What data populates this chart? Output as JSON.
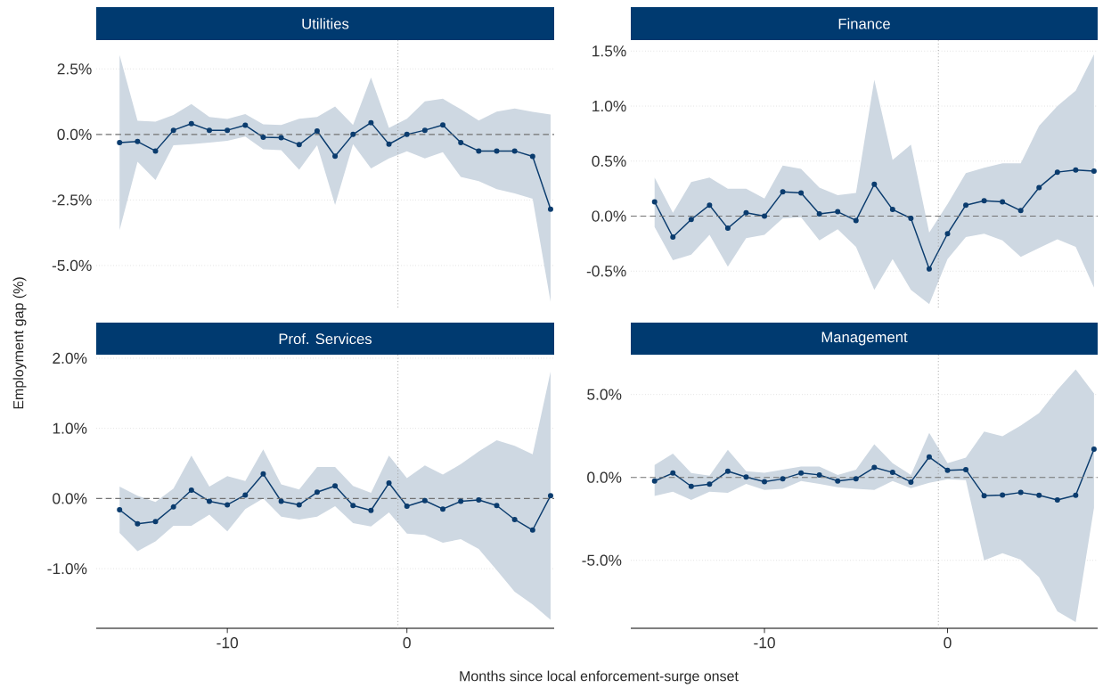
{
  "chart_data": [
    {
      "type": "line",
      "title": "Utilities",
      "ylabel": "Employment gap (%)",
      "x": [
        -16,
        -15,
        -14,
        -13,
        -12,
        -11,
        -10,
        -9,
        -8,
        -7,
        -6,
        -5,
        -4,
        -3,
        -2,
        -1,
        0,
        1,
        2,
        3,
        4,
        5,
        6,
        7,
        8
      ],
      "xlim": [
        -17.3,
        8.2
      ],
      "ylim": [
        -6.6,
        3.6
      ],
      "xticks": [
        -10,
        0
      ],
      "yticks": [
        {
          "value": -5,
          "label": "-5.0%"
        },
        {
          "value": -2.5,
          "label": "-2.5%"
        },
        {
          "value": 0,
          "label": "0.0%"
        },
        {
          "value": 2.5,
          "label": "2.5%"
        }
      ],
      "grid": "y",
      "marker": "circle",
      "line_style": "solid",
      "tick_labels": "y",
      "ref_lines": [
        {
          "axis": "x",
          "value": -0.5,
          "line_style": "dotted"
        },
        {
          "axis": "y",
          "value": 0,
          "line_style": "dashed"
        }
      ],
      "series": [
        {
          "color": "#0b3c6e",
          "values": [
            -0.31,
            -0.27,
            -0.63,
            0.16,
            0.41,
            0.16,
            0.16,
            0.35,
            -0.11,
            -0.12,
            -0.39,
            0.13,
            -0.83,
            0,
            0.45,
            -0.37,
            0,
            0.16,
            0.36,
            -0.31,
            -0.63,
            -0.63,
            -0.63,
            -0.84,
            -2.85
          ],
          "upper": [
            3.03,
            0.52,
            0.49,
            0.74,
            1.16,
            0.67,
            0.59,
            0.78,
            0.39,
            0.36,
            0.6,
            0.67,
            1.07,
            0.36,
            2.17,
            0.25,
            0.6,
            1.26,
            1.36,
            0.96,
            0.53,
            0.87,
            0.99,
            0.86,
            0.76
          ],
          "lower": [
            -3.65,
            -1.04,
            -1.74,
            -0.41,
            -0.37,
            -0.31,
            -0.24,
            -0.08,
            -0.57,
            -0.6,
            -1.35,
            -0.41,
            -2.69,
            -0.37,
            -1.3,
            -0.91,
            -0.64,
            -0.91,
            -0.68,
            -1.62,
            -1.78,
            -2.09,
            -2.25,
            -2.45,
            -6.39
          ]
        }
      ]
    },
    {
      "type": "line",
      "title": "Finance",
      "x": [
        -16,
        -15,
        -14,
        -13,
        -12,
        -11,
        -10,
        -9,
        -8,
        -7,
        -6,
        -5,
        -4,
        -3,
        -2,
        -1,
        0,
        1,
        2,
        3,
        4,
        5,
        6,
        7,
        8
      ],
      "xlim": [
        -17.3,
        8.2
      ],
      "ylim": [
        -0.83,
        1.6
      ],
      "xticks": [
        -10,
        0
      ],
      "yticks": [
        {
          "value": -0.5,
          "label": "-0.5%"
        },
        {
          "value": 0,
          "label": "0.0%"
        },
        {
          "value": 0.5,
          "label": "0.5%"
        },
        {
          "value": 1,
          "label": "1.0%"
        },
        {
          "value": 1.5,
          "label": "1.5%"
        }
      ],
      "grid": "y",
      "marker": "circle",
      "line_style": "solid",
      "tick_labels": "y",
      "ref_lines": [
        {
          "axis": "x",
          "value": -0.5,
          "line_style": "dotted"
        },
        {
          "axis": "y",
          "value": 0,
          "line_style": "dashed"
        }
      ],
      "series": [
        {
          "color": "#0b3c6e",
          "values": [
            0.13,
            -0.19,
            -0.03,
            0.1,
            -0.11,
            0.03,
            0.0,
            0.22,
            0.21,
            0.02,
            0.04,
            -0.04,
            0.29,
            0.06,
            -0.02,
            -0.48,
            -0.16,
            0.1,
            0.14,
            0.13,
            0.05,
            0.26,
            0.4,
            0.42,
            0.41
          ],
          "upper": [
            0.35,
            0.03,
            0.31,
            0.35,
            0.25,
            0.25,
            0.16,
            0.46,
            0.43,
            0.26,
            0.19,
            0.21,
            1.24,
            0.51,
            0.65,
            -0.15,
            0.11,
            0.39,
            0.44,
            0.48,
            0.48,
            0.82,
            1.0,
            1.14,
            1.47
          ],
          "lower": [
            -0.1,
            -0.4,
            -0.35,
            -0.17,
            -0.46,
            -0.2,
            -0.17,
            -0.02,
            -0.01,
            -0.22,
            -0.12,
            -0.28,
            -0.67,
            -0.39,
            -0.67,
            -0.8,
            -0.39,
            -0.19,
            -0.16,
            -0.22,
            -0.37,
            -0.29,
            -0.21,
            -0.28,
            -0.65
          ]
        }
      ]
    },
    {
      "type": "line",
      "title": "Prof. Services",
      "xlabel": "Months since local enforcement-surge onset",
      "x": [
        -16,
        -15,
        -14,
        -13,
        -12,
        -11,
        -10,
        -9,
        -8,
        -7,
        -6,
        -5,
        -4,
        -3,
        -2,
        -1,
        0,
        1,
        2,
        3,
        4,
        5,
        6,
        7,
        8
      ],
      "xlim": [
        -17.3,
        8.2
      ],
      "ylim": [
        -1.85,
        2.05
      ],
      "xticks": [
        -10,
        0
      ],
      "yticks": [
        {
          "value": -1,
          "label": "-1.0%"
        },
        {
          "value": 0,
          "label": "0.0%"
        },
        {
          "value": 1,
          "label": "1.0%"
        },
        {
          "value": 2,
          "label": "2.0%"
        }
      ],
      "grid": "y",
      "marker": "circle",
      "line_style": "solid",
      "ref_lines": [
        {
          "axis": "x",
          "value": -0.5,
          "line_style": "dotted"
        },
        {
          "axis": "y",
          "value": 0,
          "line_style": "dashed"
        }
      ],
      "series": [
        {
          "color": "#0b3c6e",
          "values": [
            -0.16,
            -0.36,
            -0.33,
            -0.12,
            0.12,
            -0.04,
            -0.09,
            0.05,
            0.35,
            -0.04,
            -0.09,
            0.09,
            0.18,
            -0.1,
            -0.17,
            0.22,
            -0.11,
            -0.03,
            -0.15,
            -0.04,
            -0.02,
            -0.1,
            -0.3,
            -0.45,
            0.04
          ],
          "upper": [
            0.17,
            0.04,
            -0.05,
            0.14,
            0.61,
            0.17,
            0.32,
            0.25,
            0.7,
            0.2,
            0.13,
            0.45,
            0.45,
            0.18,
            0.08,
            0.61,
            0.29,
            0.47,
            0.34,
            0.49,
            0.67,
            0.83,
            0.75,
            0.63,
            1.81
          ],
          "lower": [
            -0.49,
            -0.75,
            -0.61,
            -0.39,
            -0.39,
            -0.23,
            -0.47,
            -0.15,
            0.0,
            -0.26,
            -0.3,
            -0.26,
            -0.11,
            -0.35,
            -0.4,
            -0.2,
            -0.5,
            -0.52,
            -0.63,
            -0.58,
            -0.72,
            -1.02,
            -1.33,
            -1.51,
            -1.73
          ]
        }
      ]
    },
    {
      "type": "line",
      "title": "Management",
      "x": [
        -16,
        -15,
        -14,
        -13,
        -12,
        -11,
        -10,
        -9,
        -8,
        -7,
        -6,
        -5,
        -4,
        -3,
        -2,
        -1,
        0,
        1,
        2,
        3,
        4,
        5,
        6,
        7,
        8
      ],
      "xlim": [
        -17.3,
        8.2
      ],
      "ylim": [
        -9.1,
        7.4
      ],
      "xticks": [
        -10,
        0
      ],
      "yticks": [
        {
          "value": -5,
          "label": "-5.0%"
        },
        {
          "value": 0,
          "label": "0.0%"
        },
        {
          "value": 5,
          "label": "5.0%"
        }
      ],
      "grid": "y",
      "marker": "circle",
      "line_style": "solid",
      "ref_lines": [
        {
          "axis": "x",
          "value": -0.5,
          "line_style": "dotted"
        },
        {
          "axis": "y",
          "value": 0,
          "line_style": "dashed"
        }
      ],
      "series": [
        {
          "color": "#0b3c6e",
          "values": [
            -0.22,
            0.26,
            -0.54,
            -0.41,
            0.37,
            0.02,
            -0.26,
            -0.09,
            0.26,
            0.15,
            -0.22,
            -0.09,
            0.6,
            0.3,
            -0.28,
            1.23,
            0.43,
            0.47,
            -1.1,
            -1.06,
            -0.91,
            -1.08,
            -1.36,
            -1.08,
            1.7
          ],
          "upper": [
            0.75,
            1.44,
            0.26,
            0.11,
            1.66,
            0.37,
            0.28,
            0.47,
            0.65,
            0.65,
            0.15,
            0.47,
            2.0,
            0.86,
            0.15,
            2.69,
            0.86,
            1.19,
            2.76,
            2.48,
            3.13,
            3.88,
            5.28,
            6.51,
            5.06
          ],
          "lower": [
            -1.12,
            -0.86,
            -1.36,
            -0.86,
            -0.93,
            -0.39,
            -0.75,
            -0.69,
            -0.22,
            -0.39,
            -0.6,
            -0.69,
            -0.75,
            -0.22,
            -0.65,
            -0.32,
            -0.11,
            -0.17,
            -5.0,
            -4.57,
            -4.96,
            -6.03,
            -8.08,
            -8.73,
            -1.83
          ]
        }
      ]
    }
  ]
}
